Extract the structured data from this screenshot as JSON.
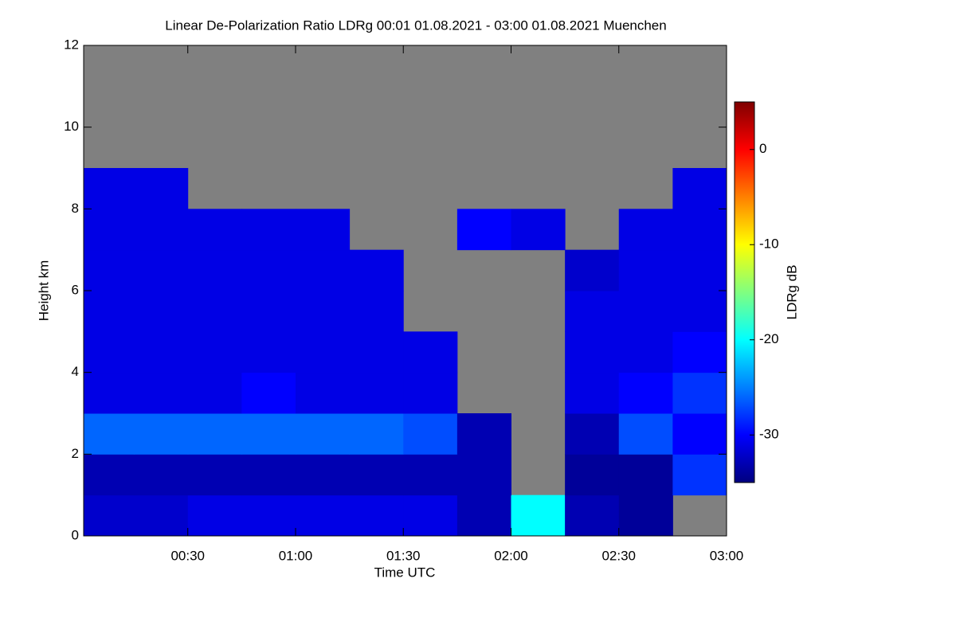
{
  "chart_data": {
    "type": "heatmap",
    "title": "Linear De-Polarization Ratio LDRg   00:01 01.08.2021 - 03:00 01.08.2021 Muenchen",
    "x_label": "Time UTC",
    "y_label": "Height km",
    "colorbar_label": "LDRg dB",
    "xlim": [
      0.0167,
      3.0
    ],
    "xticks": [
      {
        "value": 0.5,
        "label": "00:30"
      },
      {
        "value": 1,
        "label": "01:00"
      },
      {
        "value": 1.5,
        "label": "01:30"
      },
      {
        "value": 2,
        "label": "02:00"
      },
      {
        "value": 2.5,
        "label": "02:30"
      },
      {
        "value": 3,
        "label": "03:00"
      }
    ],
    "ylim": [
      0,
      12
    ],
    "yticks": [
      0,
      2,
      4,
      6,
      8,
      10,
      12
    ],
    "zlim": [
      -35,
      5
    ],
    "zticks": [
      -30,
      -20,
      -10,
      0
    ],
    "colorscale": [
      "#00007f",
      "#0000ff",
      "#0080ff",
      "#00ffff",
      "#80ff80",
      "#ffff00",
      "#ff8000",
      "#ff0000",
      "#7f0000"
    ],
    "missing_color": "#808080",
    "x_bins": [
      0,
      0.25,
      0.5,
      0.75,
      1,
      1.25,
      1.5,
      1.75,
      2,
      2.25,
      2.5,
      2.75,
      3
    ],
    "y_bins": [
      0,
      1,
      2,
      3,
      4,
      5,
      6,
      7,
      8,
      9
    ],
    "z": [
      [
        -32,
        -32,
        -31,
        -31,
        -31,
        -31,
        -31,
        -33,
        -20,
        -33,
        -34,
        null
      ],
      [
        -33,
        -33,
        -33,
        -33,
        -33,
        -33,
        -33,
        -33,
        null,
        -34,
        -34,
        -28
      ],
      [
        -26,
        -26,
        -26,
        -26,
        -26,
        -26,
        -27,
        -33,
        null,
        -33,
        -27,
        -30
      ],
      [
        -31,
        -31,
        -31,
        -30,
        -31,
        -31,
        -31,
        null,
        null,
        -31,
        -30,
        -28
      ],
      [
        -31,
        -31,
        -31,
        -31,
        -31,
        -31,
        -31,
        null,
        null,
        -31,
        -31,
        -30
      ],
      [
        -31,
        -31,
        -31,
        -31,
        -31,
        -31,
        null,
        null,
        null,
        -31,
        -31,
        -31
      ],
      [
        -31,
        -31,
        -31,
        -31,
        -31,
        -31,
        null,
        null,
        null,
        -32,
        -31,
        -31
      ],
      [
        -31,
        -31,
        -31,
        -31,
        -31,
        null,
        null,
        -30,
        -31,
        null,
        -31,
        -31
      ],
      [
        -31,
        -31,
        null,
        null,
        null,
        null,
        null,
        null,
        null,
        null,
        null,
        -31
      ]
    ]
  }
}
